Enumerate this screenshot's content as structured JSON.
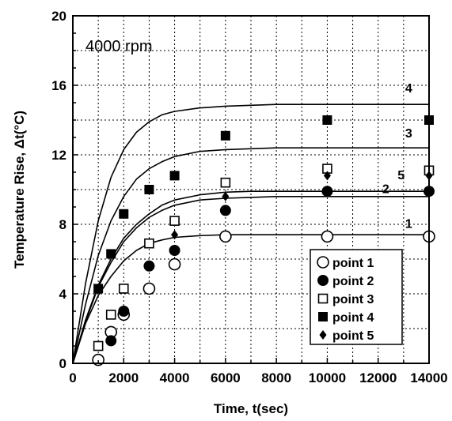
{
  "chart_data": {
    "type": "line",
    "annotation": "4000 rpm",
    "xlabel": "Time, t(sec)",
    "ylabel": "Temperature Rise, Δt(°C)",
    "xlim": [
      0,
      14000
    ],
    "ylim": [
      0,
      20
    ],
    "xticks": [
      0,
      2000,
      4000,
      6000,
      8000,
      10000,
      12000,
      14000
    ],
    "yticks": [
      0,
      4,
      8,
      12,
      16,
      20
    ],
    "grid": true,
    "legend_position": "lower-right",
    "lines": [
      {
        "label": "1",
        "x": [
          0,
          500,
          1000,
          1500,
          2000,
          2500,
          3000,
          3500,
          4000,
          5000,
          6000,
          7000,
          8000,
          10000,
          12000,
          14000
        ],
        "y": [
          0,
          2.3,
          3.9,
          5.0,
          5.9,
          6.5,
          6.9,
          7.1,
          7.25,
          7.35,
          7.4,
          7.4,
          7.4,
          7.4,
          7.4,
          7.4
        ]
      },
      {
        "label": "2",
        "x": [
          0,
          500,
          1000,
          1500,
          2000,
          2500,
          3000,
          3500,
          4000,
          5000,
          6000,
          7000,
          8000,
          10000,
          12000,
          14000
        ],
        "y": [
          0,
          2.4,
          4.4,
          5.8,
          7.0,
          7.8,
          8.4,
          8.8,
          9.1,
          9.4,
          9.5,
          9.55,
          9.6,
          9.6,
          9.6,
          9.6
        ]
      },
      {
        "label": "5",
        "x": [
          0,
          500,
          1000,
          1500,
          2000,
          2500,
          3000,
          3500,
          4000,
          5000,
          6000,
          7000,
          8000,
          10000,
          12000,
          14000
        ],
        "y": [
          0,
          2.5,
          4.5,
          6.0,
          7.2,
          8.0,
          8.6,
          9.1,
          9.4,
          9.7,
          9.85,
          9.9,
          9.9,
          9.9,
          9.9,
          9.9
        ]
      },
      {
        "label": "3",
        "x": [
          0,
          500,
          1000,
          1500,
          2000,
          2500,
          3000,
          3500,
          4000,
          5000,
          6000,
          7000,
          8000,
          10000,
          12000,
          14000
        ],
        "y": [
          0,
          3.4,
          6.2,
          8.2,
          9.6,
          10.6,
          11.2,
          11.6,
          11.9,
          12.2,
          12.3,
          12.35,
          12.4,
          12.4,
          12.4,
          12.4
        ]
      },
      {
        "label": "4",
        "x": [
          0,
          500,
          1000,
          1500,
          2000,
          2500,
          3000,
          3500,
          4000,
          5000,
          6000,
          7000,
          8000,
          10000,
          12000,
          14000
        ],
        "y": [
          0,
          4.6,
          8.2,
          10.7,
          12.3,
          13.3,
          13.9,
          14.3,
          14.5,
          14.7,
          14.8,
          14.85,
          14.9,
          14.9,
          14.9,
          14.9
        ]
      }
    ],
    "series": [
      {
        "name": "point 1",
        "marker": "open-circle",
        "x": [
          1000,
          1500,
          2000,
          3000,
          4000,
          6000,
          10000,
          14000
        ],
        "y": [
          0.2,
          1.8,
          2.8,
          4.3,
          5.7,
          7.3,
          7.3,
          7.3
        ]
      },
      {
        "name": "point 2",
        "marker": "filled-circle",
        "x": [
          1500,
          2000,
          3000,
          4000,
          6000,
          10000,
          14000
        ],
        "y": [
          1.3,
          3.0,
          5.6,
          6.5,
          8.8,
          9.9,
          9.9
        ]
      },
      {
        "name": "point 3",
        "marker": "open-square",
        "x": [
          1000,
          1500,
          2000,
          3000,
          4000,
          6000,
          10000,
          14000
        ],
        "y": [
          1.0,
          2.8,
          4.3,
          6.9,
          8.2,
          10.4,
          11.2,
          11.1
        ]
      },
      {
        "name": "point 4",
        "marker": "filled-square",
        "x": [
          1000,
          1500,
          2000,
          3000,
          4000,
          6000,
          10000,
          14000
        ],
        "y": [
          4.3,
          6.3,
          8.6,
          10.0,
          10.8,
          13.1,
          14.0,
          14.0
        ]
      },
      {
        "name": "point 5",
        "marker": "filled-diamond",
        "x": [
          4000,
          6000,
          10000,
          14000
        ],
        "y": [
          7.4,
          9.6,
          10.8,
          10.8
        ]
      }
    ]
  }
}
